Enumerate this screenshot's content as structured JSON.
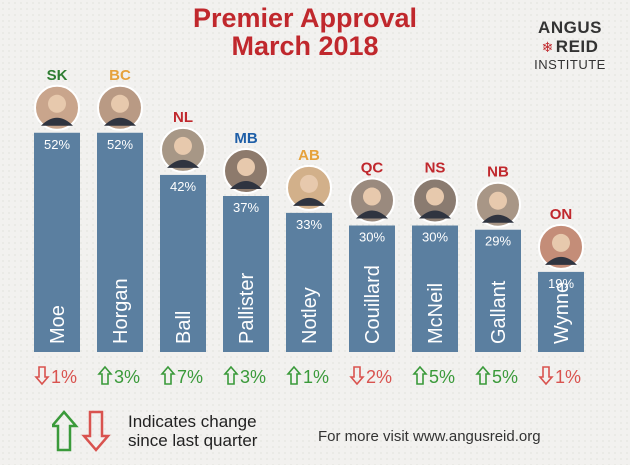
{
  "title_line1": "Premier Approval",
  "title_line2": "March 2018",
  "logo": {
    "line1": "ANGUS",
    "line2": "REID",
    "line3": "INSTITUTE"
  },
  "legend_text_line1": "Indicates change",
  "legend_text_line2": "since last quarter",
  "footer": "For more visit www.angusreid.org",
  "colors": {
    "bar": "#5b7fa0",
    "title": "#c0282d",
    "up": "#3a9a3a",
    "down": "#d9534f"
  },
  "chart_data": {
    "type": "bar",
    "ylim": [
      0,
      60
    ],
    "categories": [
      "Moe",
      "Horgan",
      "Ball",
      "Pallister",
      "Notley",
      "Couillard",
      "McNeil",
      "Gallant",
      "Wynne"
    ],
    "provinces": [
      "SK",
      "BC",
      "NL",
      "MB",
      "AB",
      "QC",
      "NS",
      "NB",
      "ON"
    ],
    "province_colors": [
      "#2e7d32",
      "#e6a23c",
      "#c0282d",
      "#1f5fa8",
      "#e6a23c",
      "#c0282d",
      "#c0282d",
      "#c0282d",
      "#c0282d"
    ],
    "values": [
      52,
      52,
      42,
      37,
      33,
      30,
      30,
      29,
      19
    ],
    "value_labels": [
      "52%",
      "52%",
      "42%",
      "37%",
      "33%",
      "30%",
      "30%",
      "29%",
      "19%"
    ],
    "changes": [
      -1,
      3,
      7,
      3,
      1,
      -2,
      5,
      5,
      -1
    ],
    "change_labels": [
      "1%",
      "3%",
      "7%",
      "3%",
      "1%",
      "2%",
      "5%",
      "5%",
      "1%"
    ]
  }
}
